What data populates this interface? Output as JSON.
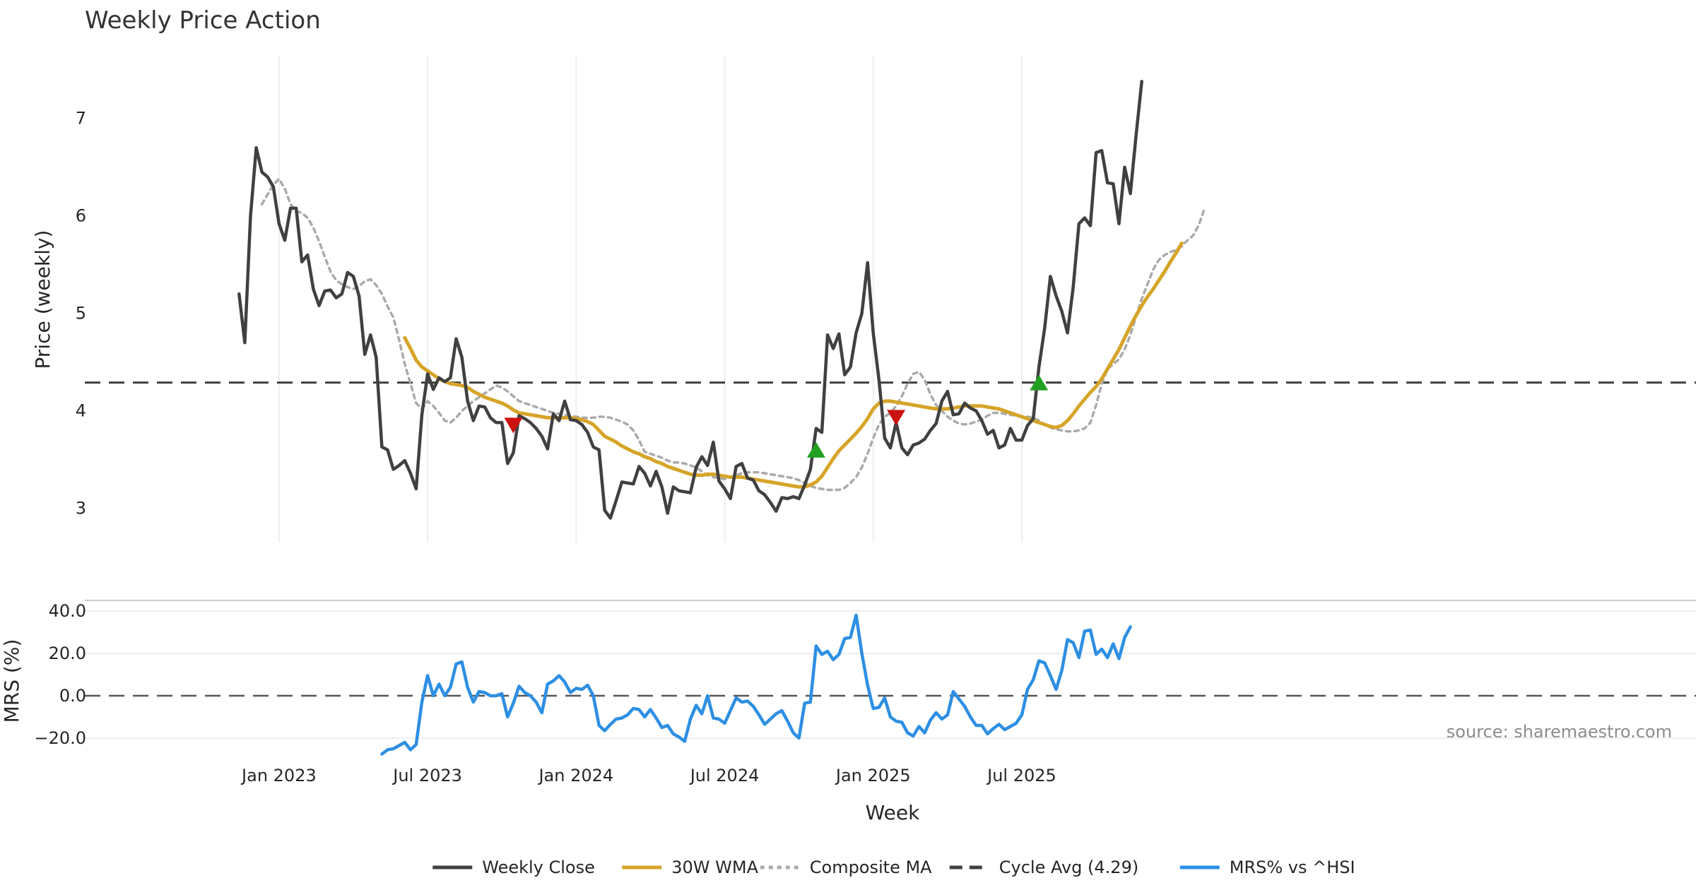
{
  "chart_data": [
    {
      "type": "line",
      "title": "Weekly Price Action",
      "xlabel": "Week",
      "ylabel": "Price (weekly)",
      "xlim": [
        -34,
        248
      ],
      "ylim": [
        2.65,
        7.65
      ],
      "yticks": [
        3,
        4,
        5,
        6,
        7
      ],
      "grid": true,
      "x_tick_positions": [
        0,
        26,
        52,
        78,
        104,
        130
      ],
      "x_tick_labels": [
        "Jan 2023",
        "Jul 2023",
        "Jan 2024",
        "Jul 2024",
        "Jan 2025",
        "Jul 2025"
      ],
      "series": [
        {
          "name": "Weekly Close",
          "color": "#404040",
          "style": "solid",
          "start_week": -7,
          "values": [
            5.2,
            4.7,
            6.0,
            6.7,
            6.45,
            6.4,
            6.3,
            5.92,
            5.75,
            6.08,
            6.08,
            5.53,
            5.6,
            5.25,
            5.08,
            5.23,
            5.24,
            5.16,
            5.2,
            5.42,
            5.38,
            5.18,
            4.58,
            4.78,
            4.55,
            3.63,
            3.6,
            3.4,
            3.44,
            3.49,
            3.36,
            3.2,
            3.96,
            4.38,
            4.22,
            4.34,
            4.3,
            4.34,
            4.74,
            4.55,
            4.1,
            3.9,
            4.05,
            4.04,
            3.93,
            3.88,
            3.88,
            3.46,
            3.57,
            3.95,
            3.92,
            3.88,
            3.82,
            3.74,
            3.61,
            3.97,
            3.9,
            4.1,
            3.91,
            3.9,
            3.86,
            3.78,
            3.63,
            3.6,
            2.98,
            2.9,
            3.08,
            3.27,
            3.26,
            3.25,
            3.43,
            3.36,
            3.23,
            3.38,
            3.22,
            2.95,
            3.22,
            3.18,
            3.17,
            3.16,
            3.42,
            3.53,
            3.44,
            3.68,
            3.28,
            3.2,
            3.1,
            3.43,
            3.46,
            3.31,
            3.29,
            3.18,
            3.14,
            3.06,
            2.97,
            3.11,
            3.1,
            3.12,
            3.1,
            3.24,
            3.4,
            3.82,
            3.78,
            4.78,
            4.64,
            4.79,
            4.37,
            4.45,
            4.8,
            5.0,
            5.52,
            4.8,
            4.32,
            3.72,
            3.62,
            3.88,
            3.62,
            3.55,
            3.65,
            3.67,
            3.71,
            3.8,
            3.87,
            4.1,
            4.2,
            3.96,
            3.97,
            4.08,
            4.03,
            4.0,
            3.9,
            3.76,
            3.8,
            3.62,
            3.65,
            3.82,
            3.7,
            3.7,
            3.85,
            3.92,
            4.45,
            4.85,
            5.38,
            5.18,
            5.02,
            4.8,
            5.27,
            5.92,
            5.98,
            5.9,
            6.65,
            6.67,
            6.34,
            6.33,
            5.92,
            6.5,
            6.23,
            6.83,
            7.38
          ]
        },
        {
          "name": "30W WMA",
          "color": "#d6a428",
          "style": "solid",
          "start_week": 22,
          "values": [
            4.75,
            4.64,
            4.52,
            4.45,
            4.41,
            4.37,
            4.33,
            4.3,
            4.28,
            4.27,
            4.26,
            4.24,
            4.2,
            4.17,
            4.14,
            4.12,
            4.1,
            4.08,
            4.05,
            4.01,
            3.98,
            3.97,
            3.96,
            3.95,
            3.94,
            3.93,
            3.93,
            3.93,
            3.93,
            3.93,
            3.92,
            3.91,
            3.89,
            3.86,
            3.8,
            3.74,
            3.71,
            3.68,
            3.64,
            3.61,
            3.58,
            3.56,
            3.53,
            3.51,
            3.48,
            3.46,
            3.43,
            3.41,
            3.39,
            3.37,
            3.35,
            3.34,
            3.34,
            3.35,
            3.35,
            3.34,
            3.33,
            3.32,
            3.32,
            3.32,
            3.31,
            3.3,
            3.29,
            3.28,
            3.27,
            3.26,
            3.25,
            3.24,
            3.23,
            3.22,
            3.22,
            3.24,
            3.27,
            3.33,
            3.42,
            3.51,
            3.59,
            3.65,
            3.71,
            3.77,
            3.84,
            3.92,
            4.02,
            4.08,
            4.1,
            4.1,
            4.09,
            4.08,
            4.07,
            4.06,
            4.05,
            4.04,
            4.03,
            4.02,
            4.02,
            4.02,
            4.03,
            4.04,
            4.05,
            4.05,
            4.05,
            4.05,
            4.04,
            4.03,
            4.02,
            4.0,
            3.98,
            3.96,
            3.94,
            3.92,
            3.9,
            3.88,
            3.86,
            3.84,
            3.83,
            3.85,
            3.9,
            3.97,
            4.05,
            4.12,
            4.19,
            4.25,
            4.33,
            4.43,
            4.53,
            4.63,
            4.75,
            4.87,
            4.98,
            5.08,
            5.17,
            5.25,
            5.34,
            5.43,
            5.53,
            5.62,
            5.72
          ]
        },
        {
          "name": "Composite MA",
          "color": "#aaaaaa",
          "style": "dotted",
          "start_week": -3,
          "values": [
            6.12,
            6.22,
            6.32,
            6.38,
            6.28,
            6.12,
            6.05,
            6.03,
            5.98,
            5.88,
            5.74,
            5.58,
            5.43,
            5.34,
            5.3,
            5.27,
            5.25,
            5.28,
            5.33,
            5.35,
            5.29,
            5.2,
            5.07,
            4.96,
            4.73,
            4.48,
            4.28,
            4.08,
            4.02,
            4.1,
            4.05,
            3.98,
            3.9,
            3.88,
            3.93,
            4.0,
            4.05,
            4.1,
            4.14,
            4.18,
            4.22,
            4.26,
            4.24,
            4.2,
            4.15,
            4.1,
            4.08,
            4.06,
            4.04,
            4.02,
            4.0,
            3.98,
            3.97,
            3.96,
            3.95,
            3.94,
            3.93,
            3.93,
            3.93,
            3.94,
            3.94,
            3.93,
            3.91,
            3.89,
            3.86,
            3.8,
            3.7,
            3.58,
            3.56,
            3.54,
            3.52,
            3.49,
            3.47,
            3.47,
            3.46,
            3.44,
            3.42,
            3.38,
            3.34,
            3.32,
            3.31,
            3.3,
            3.32,
            3.34,
            3.36,
            3.37,
            3.37,
            3.37,
            3.36,
            3.35,
            3.34,
            3.33,
            3.32,
            3.31,
            3.29,
            3.26,
            3.23,
            3.21,
            3.2,
            3.19,
            3.19,
            3.19,
            3.21,
            3.26,
            3.32,
            3.42,
            3.56,
            3.72,
            3.86,
            3.94,
            3.98,
            4.05,
            4.15,
            4.28,
            4.38,
            4.4,
            4.32,
            4.17,
            4.06,
            4.0,
            3.94,
            3.9,
            3.87,
            3.86,
            3.87,
            3.89,
            3.91,
            3.95,
            3.98,
            3.98,
            3.97,
            3.96,
            3.95,
            3.94,
            3.94,
            3.93,
            3.9,
            3.86,
            3.83,
            3.81,
            3.8,
            3.79,
            3.79,
            3.8,
            3.82,
            3.88,
            4.06,
            4.28,
            4.43,
            4.48,
            4.53,
            4.63,
            4.78,
            4.97,
            5.15,
            5.3,
            5.45,
            5.55,
            5.6,
            5.63,
            5.65,
            5.69,
            5.75,
            5.8,
            5.91,
            6.08
          ]
        },
        {
          "name": "Cycle Avg (4.29)",
          "color": "#404040",
          "style": "dashed",
          "constant": 4.29
        }
      ],
      "markers": [
        {
          "type": "sell",
          "color": "#cc1111",
          "x": 41,
          "y": 3.85
        },
        {
          "type": "buy",
          "color": "#22a022",
          "x": 94,
          "y": 3.6
        },
        {
          "type": "sell",
          "color": "#cc1111",
          "x": 108,
          "y": 3.93
        },
        {
          "type": "buy",
          "color": "#22a022",
          "x": 133,
          "y": 4.29
        }
      ]
    },
    {
      "type": "line",
      "xlabel": "Week",
      "ylabel": "MRS (%)",
      "xlim": [
        -34,
        248
      ],
      "ylim": [
        -25,
        45
      ],
      "yticks": [
        -20,
        0,
        20,
        40
      ],
      "ytick_labels": [
        "−20.0",
        "0.0",
        "20.0",
        "40.0"
      ],
      "zero_line": true,
      "series": [
        {
          "name": "MRS% vs ^HSI",
          "color": "#2d8fe3",
          "style": "solid",
          "start_week": 18,
          "values": [
            -27.5,
            -25.5,
            -25,
            -23.5,
            -22,
            -25.5,
            -23,
            -3,
            9.5,
            0,
            5.5,
            0,
            4,
            15,
            16,
            4,
            -3,
            2,
            1.5,
            0,
            0,
            1,
            -10,
            -3.5,
            4.5,
            1.5,
            0,
            -3,
            -8,
            5.5,
            7,
            9.5,
            6.5,
            1.5,
            3.5,
            3,
            5,
            0,
            -14,
            -16.5,
            -13.5,
            -11,
            -10.5,
            -9,
            -6,
            -6.5,
            -10,
            -6.5,
            -10.5,
            -15,
            -14,
            -18,
            -19.5,
            -21.5,
            -11,
            -4.5,
            -8.5,
            0,
            -10.5,
            -11,
            -13,
            -7,
            -1,
            -3,
            -2.5,
            -5,
            -9,
            -13.5,
            -11,
            -8.5,
            -7,
            -12,
            -17.5,
            -20,
            -3.5,
            -3,
            23.5,
            19.5,
            21,
            17,
            19.5,
            27,
            27.5,
            38,
            20,
            5,
            -6,
            -5.5,
            -1,
            -10,
            -12,
            -12.5,
            -17.5,
            -19,
            -14.5,
            -17.5,
            -11.5,
            -8,
            -11,
            -9,
            2,
            -1.5,
            -5,
            -10,
            -14,
            -14,
            -18,
            -15.5,
            -13.5,
            -16,
            -14.5,
            -13,
            -9,
            3,
            7.5,
            16.5,
            15.5,
            9.5,
            3,
            12,
            26.5,
            25,
            18,
            30.5,
            31,
            19.5,
            22,
            18,
            24.5,
            17.5,
            27.5,
            32.5
          ]
        }
      ]
    }
  ],
  "legend": [
    {
      "label": "Weekly Close",
      "color": "#404040",
      "style": "solid"
    },
    {
      "label": "30W WMA",
      "color": "#d6a428",
      "style": "solid"
    },
    {
      "label": "Composite MA",
      "color": "#aaaaaa",
      "style": "dotted"
    },
    {
      "label": "Cycle Avg (4.29)",
      "color": "#404040",
      "style": "dashed"
    },
    {
      "label": "MRS% vs ^HSI",
      "color": "#2d8fe3",
      "style": "solid"
    }
  ],
  "source": "source: sharemaestro.com"
}
